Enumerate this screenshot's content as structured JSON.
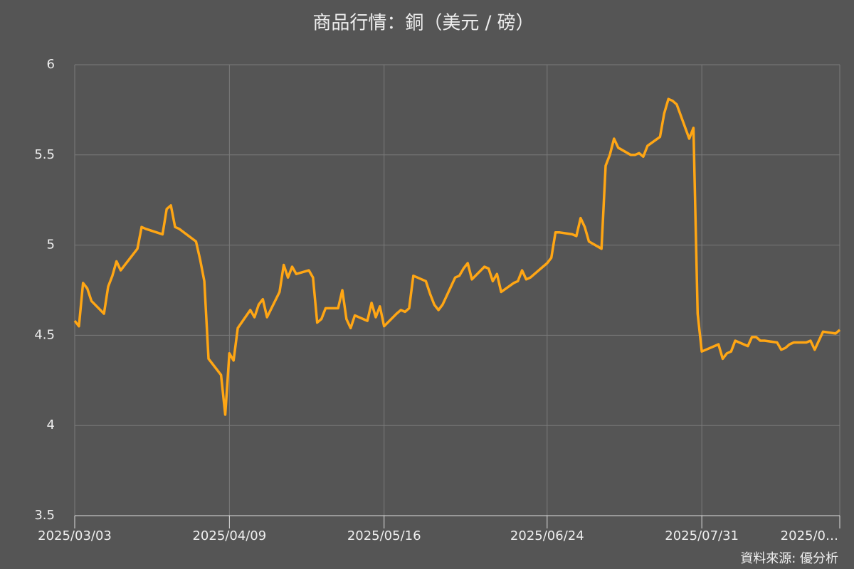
{
  "chart_data": {
    "type": "line",
    "title": "商品行情：銅（美元 / 磅）",
    "source": "資料來源: 優分析",
    "x": [
      "2025/03/03",
      "2025/03/04",
      "2025/03/05",
      "2025/03/06",
      "2025/03/07",
      "2025/03/10",
      "2025/03/11",
      "2025/03/12",
      "2025/03/13",
      "2025/03/14",
      "2025/03/18",
      "2025/03/19",
      "2025/03/20",
      "2025/03/24",
      "2025/03/25",
      "2025/03/26",
      "2025/03/27",
      "2025/03/28",
      "2025/04/01",
      "2025/04/02",
      "2025/04/03",
      "2025/04/04",
      "2025/04/07",
      "2025/04/08",
      "2025/04/09",
      "2025/04/10",
      "2025/04/11",
      "2025/04/14",
      "2025/04/15",
      "2025/04/16",
      "2025/04/17",
      "2025/04/18",
      "2025/04/21",
      "2025/04/22",
      "2025/04/23",
      "2025/04/24",
      "2025/04/25",
      "2025/04/28",
      "2025/04/29",
      "2025/04/30",
      "2025/05/01",
      "2025/05/02",
      "2025/05/05",
      "2025/05/06",
      "2025/05/07",
      "2025/05/08",
      "2025/05/09",
      "2025/05/12",
      "2025/05/13",
      "2025/05/14",
      "2025/05/15",
      "2025/05/16",
      "2025/05/19",
      "2025/05/20",
      "2025/05/21",
      "2025/05/22",
      "2025/05/23",
      "2025/05/26",
      "2025/05/27",
      "2025/05/28",
      "2025/05/29",
      "2025/05/30",
      "2025/06/02",
      "2025/06/03",
      "2025/06/04",
      "2025/06/05",
      "2025/06/06",
      "2025/06/09",
      "2025/06/10",
      "2025/06/11",
      "2025/06/12",
      "2025/06/13",
      "2025/06/16",
      "2025/06/17",
      "2025/06/18",
      "2025/06/19",
      "2025/06/20",
      "2025/06/23",
      "2025/06/24",
      "2025/06/25",
      "2025/06/26",
      "2025/06/27",
      "2025/06/30",
      "2025/07/01",
      "2025/07/02",
      "2025/07/03",
      "2025/07/04",
      "2025/07/07",
      "2025/07/08",
      "2025/07/09",
      "2025/07/10",
      "2025/07/11",
      "2025/07/14",
      "2025/07/15",
      "2025/07/16",
      "2025/07/17",
      "2025/07/18",
      "2025/07/21",
      "2025/07/22",
      "2025/07/23",
      "2025/07/24",
      "2025/07/25",
      "2025/07/28",
      "2025/07/29",
      "2025/07/30",
      "2025/07/31",
      "2025/08/01",
      "2025/08/04",
      "2025/08/05",
      "2025/08/06",
      "2025/08/07",
      "2025/08/08",
      "2025/08/11",
      "2025/08/12",
      "2025/08/13",
      "2025/08/14",
      "2025/08/15",
      "2025/08/18",
      "2025/08/19",
      "2025/08/20",
      "2025/08/21",
      "2025/08/22",
      "2025/08/25",
      "2025/08/26",
      "2025/08/27",
      "2025/08/28",
      "2025/08/29",
      "2025/09/01",
      "2025/09/02"
    ],
    "series": [
      {
        "name": "銅",
        "color": "#ffa614",
        "values": [
          4.58,
          4.55,
          4.79,
          4.76,
          4.69,
          4.62,
          4.77,
          4.83,
          4.91,
          4.86,
          4.98,
          5.1,
          5.09,
          5.06,
          5.2,
          5.22,
          5.1,
          5.09,
          5.02,
          4.92,
          4.8,
          4.37,
          4.28,
          4.06,
          4.4,
          4.36,
          4.54,
          4.64,
          4.6,
          4.67,
          4.7,
          4.6,
          4.74,
          4.89,
          4.82,
          4.88,
          4.84,
          4.86,
          4.82,
          4.57,
          4.59,
          4.65,
          4.65,
          4.75,
          4.59,
          4.54,
          4.61,
          4.58,
          4.68,
          4.6,
          4.66,
          4.55,
          4.62,
          4.64,
          4.63,
          4.65,
          4.83,
          4.8,
          4.73,
          4.67,
          4.64,
          4.67,
          4.82,
          4.83,
          4.87,
          4.9,
          4.81,
          4.88,
          4.87,
          4.8,
          4.84,
          4.74,
          4.79,
          4.8,
          4.86,
          4.81,
          4.82,
          4.88,
          4.9,
          4.93,
          5.07,
          5.07,
          5.06,
          5.05,
          5.15,
          5.1,
          5.02,
          4.98,
          5.44,
          5.5,
          5.59,
          5.54,
          5.5,
          5.5,
          5.51,
          5.49,
          5.55,
          5.6,
          5.73,
          5.81,
          5.8,
          5.78,
          5.59,
          5.65,
          4.62,
          4.41,
          4.42,
          4.45,
          4.37,
          4.4,
          4.41,
          4.47,
          4.44,
          4.49,
          4.49,
          4.47,
          4.47,
          4.46,
          4.42,
          4.43,
          4.45,
          4.46,
          4.46,
          4.47,
          4.42,
          4.47,
          4.52,
          4.51,
          4.53
        ]
      }
    ],
    "xlim": [
      "2025/03/03",
      "2025/09/02"
    ],
    "xticks": [
      "2025/03/03",
      "2025/04/09",
      "2025/05/16",
      "2025/06/24",
      "2025/07/31",
      {
        "value": "2025/09/02",
        "label": "2025/0…"
      }
    ],
    "ylim": [
      3.5,
      6
    ],
    "yticks": [
      3.5,
      4,
      4.5,
      5,
      5.5,
      6
    ],
    "grid": true
  }
}
